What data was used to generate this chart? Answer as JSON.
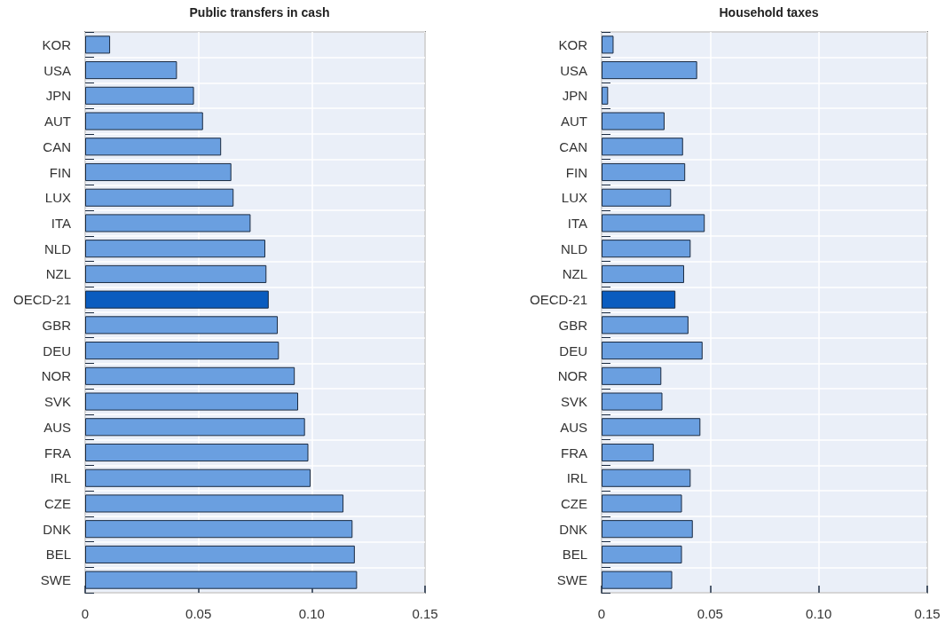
{
  "chart_data": [
    {
      "type": "bar",
      "orientation": "horizontal",
      "title": "Public transfers in cash",
      "categories": [
        "KOR",
        "USA",
        "JPN",
        "AUT",
        "CAN",
        "FIN",
        "LUX",
        "ITA",
        "NLD",
        "NZL",
        "OECD-21",
        "GBR",
        "DEU",
        "NOR",
        "SVK",
        "AUS",
        "FRA",
        "IRL",
        "CZE",
        "DNK",
        "BEL",
        "SWE"
      ],
      "values": [
        0.011,
        0.0405,
        0.048,
        0.052,
        0.06,
        0.0645,
        0.0655,
        0.073,
        0.0795,
        0.08,
        0.081,
        0.085,
        0.0855,
        0.0925,
        0.094,
        0.097,
        0.0985,
        0.0995,
        0.114,
        0.118,
        0.119,
        0.12
      ],
      "colors": [
        "#6a9fe0",
        "#6a9fe0",
        "#6a9fe0",
        "#6a9fe0",
        "#6a9fe0",
        "#6a9fe0",
        "#6a9fe0",
        "#6a9fe0",
        "#6a9fe0",
        "#6a9fe0",
        "#0a5cbf",
        "#6a9fe0",
        "#6a9fe0",
        "#6a9fe0",
        "#6a9fe0",
        "#6a9fe0",
        "#6a9fe0",
        "#6a9fe0",
        "#6a9fe0",
        "#6a9fe0",
        "#6a9fe0",
        "#6a9fe0"
      ],
      "xlim": [
        0,
        0.15
      ],
      "xticks": [
        0,
        0.05,
        {
          "value": 0.1,
          "label": "0.10"
        },
        0.15
      ],
      "grid": true
    },
    {
      "type": "bar",
      "orientation": "horizontal",
      "title": "Household taxes",
      "categories": [
        "KOR",
        "USA",
        "JPN",
        "AUT",
        "CAN",
        "FIN",
        "LUX",
        "ITA",
        "NLD",
        "NZL",
        "OECD-21",
        "GBR",
        "DEU",
        "NOR",
        "SVK",
        "AUS",
        "FRA",
        "IRL",
        "CZE",
        "DNK",
        "BEL",
        "SWE"
      ],
      "values": [
        0.0055,
        0.044,
        0.003,
        0.029,
        0.0375,
        0.0385,
        0.032,
        0.0475,
        0.041,
        0.038,
        0.034,
        0.04,
        0.0465,
        0.0275,
        0.028,
        0.0455,
        0.024,
        0.041,
        0.037,
        0.042,
        0.037,
        0.0325
      ],
      "colors": [
        "#6a9fe0",
        "#6a9fe0",
        "#6a9fe0",
        "#6a9fe0",
        "#6a9fe0",
        "#6a9fe0",
        "#6a9fe0",
        "#6a9fe0",
        "#6a9fe0",
        "#6a9fe0",
        "#0a5cbf",
        "#6a9fe0",
        "#6a9fe0",
        "#6a9fe0",
        "#6a9fe0",
        "#6a9fe0",
        "#6a9fe0",
        "#6a9fe0",
        "#6a9fe0",
        "#6a9fe0",
        "#6a9fe0",
        "#6a9fe0"
      ],
      "xlim": [
        0,
        0.15
      ],
      "xticks": [
        0,
        0.05,
        {
          "value": 0.1,
          "label": "0.10"
        },
        0.15
      ],
      "grid": true
    }
  ]
}
